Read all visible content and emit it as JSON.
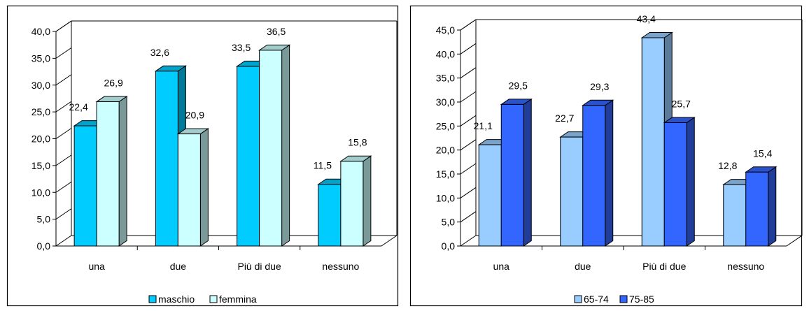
{
  "page_title": "",
  "chart_data": [
    {
      "type": "bar",
      "title": "",
      "categories": [
        "una",
        "due",
        "Più di due",
        "nessuno"
      ],
      "series": [
        {
          "name": "maschio",
          "values": [
            22.4,
            32.6,
            33.5,
            11.5
          ]
        },
        {
          "name": "femmina",
          "values": [
            26.9,
            20.9,
            36.5,
            15.8
          ]
        }
      ],
      "ylim": [
        0,
        40
      ],
      "ytick_step": 5,
      "ytick_labels": [
        "0,0",
        "5,0",
        "10,0",
        "15,0",
        "20,0",
        "25,0",
        "30,0",
        "35,0",
        "40,0"
      ],
      "data_labels": [
        [
          "22,4",
          "32,6",
          "33,5",
          "11,5"
        ],
        [
          "26,9",
          "20,9",
          "36,5",
          "15,8"
        ]
      ],
      "grid": false,
      "three_d": true,
      "legend_position": "bottom",
      "colors": {
        "series": [
          "#00ccff",
          "#ccffff"
        ],
        "stroke": "#000000"
      }
    },
    {
      "type": "bar",
      "title": "",
      "categories": [
        "una",
        "due",
        "Più di due",
        "nessuno"
      ],
      "series": [
        {
          "name": "65-74",
          "values": [
            21.1,
            22.7,
            43.4,
            12.8
          ]
        },
        {
          "name": "75-85",
          "values": [
            29.5,
            29.3,
            25.7,
            15.4
          ]
        }
      ],
      "ylim": [
        0,
        45
      ],
      "ytick_step": 5,
      "ytick_labels": [
        "0,0",
        "5,0",
        "10,0",
        "15,0",
        "20,0",
        "25,0",
        "30,0",
        "35,0",
        "40,0",
        "45,0"
      ],
      "data_labels": [
        [
          "21,1",
          "22,7",
          "43,4",
          "12,8"
        ],
        [
          "29,5",
          "29,3",
          "25,7",
          "15,4"
        ]
      ],
      "grid": false,
      "three_d": true,
      "legend_position": "bottom",
      "colors": {
        "series": [
          "#99ccff",
          "#3366ff"
        ],
        "stroke": "#000000"
      }
    }
  ]
}
